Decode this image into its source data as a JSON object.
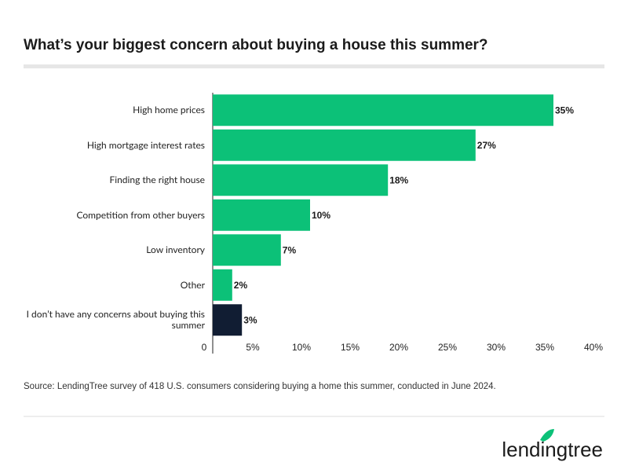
{
  "chart_data": {
    "type": "bar",
    "orientation": "horizontal",
    "title": "What’s your biggest concern about buying a house this summer?",
    "categories": [
      "High home prices",
      "High mortgage interest rates",
      "Finding the right house",
      "Competition from other buyers",
      "Low inventory",
      "Other",
      "I don’t have any concerns about buying this summer"
    ],
    "values": [
      35,
      27,
      18,
      10,
      7,
      2,
      3
    ],
    "value_labels": [
      "35%",
      "27%",
      "18%",
      "10%",
      "7%",
      "2%",
      "3%"
    ],
    "colors": [
      "#0cc178",
      "#0cc178",
      "#0cc178",
      "#0cc178",
      "#0cc178",
      "#0cc178",
      "#111d33"
    ],
    "xlim": [
      0,
      40
    ],
    "xticks": [
      0,
      {
        "value": 5,
        "label": "5%"
      },
      {
        "value": 10,
        "label": "10%"
      },
      {
        "value": 15,
        "label": "15%"
      },
      {
        "value": 20,
        "label": "20%"
      },
      {
        "value": 25,
        "label": "25%"
      },
      {
        "value": 30,
        "label": "30%"
      },
      {
        "value": 35,
        "label": "35%"
      },
      {
        "value": 40,
        "label": "40%"
      }
    ],
    "source": "Source: LendingTree survey of 418 U.S. consumers considering buying a home this summer, conducted in June 2024.",
    "logo": "lendingtree"
  }
}
